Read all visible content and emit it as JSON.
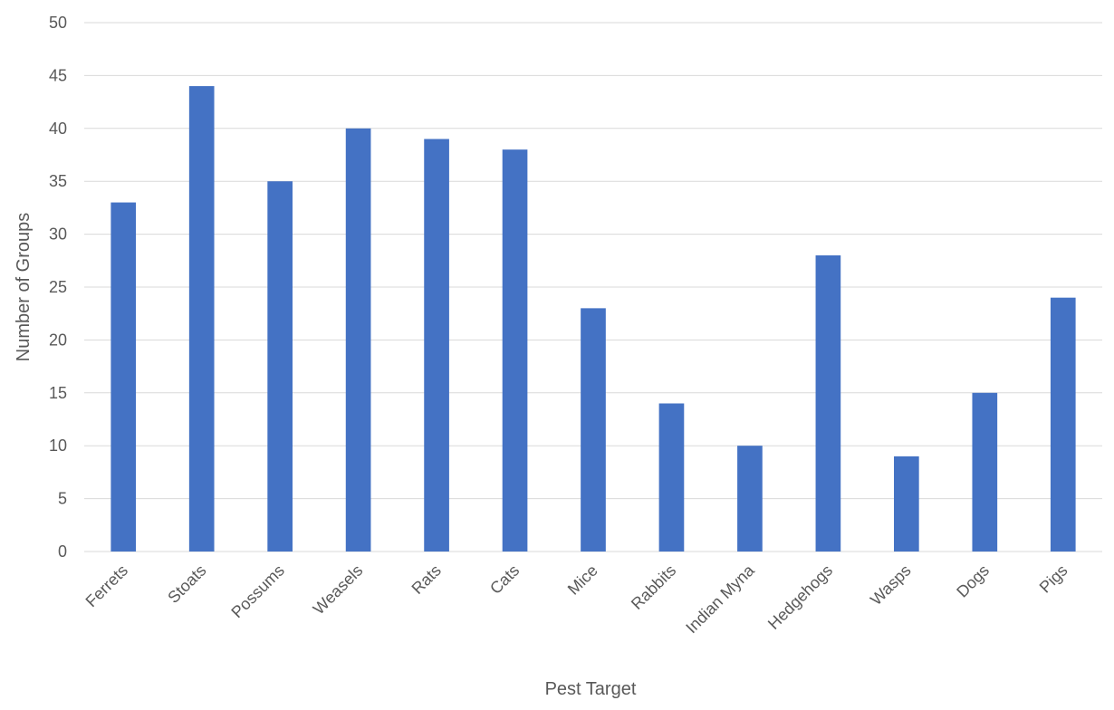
{
  "chart_data": {
    "type": "bar",
    "title": "",
    "xlabel": "Pest Target",
    "ylabel": "Number of Groups",
    "categories": [
      "Ferrets",
      "Stoats",
      "Possums",
      "Weasels",
      "Rats",
      "Cats",
      "Mice",
      "Rabbits",
      "Indian Myna",
      "Hedgehogs",
      "Wasps",
      "Dogs",
      "Pigs"
    ],
    "values": [
      33,
      44,
      35,
      40,
      39,
      38,
      23,
      14,
      10,
      28,
      9,
      15,
      24
    ],
    "ylim": [
      0,
      50
    ],
    "yticks": [
      0,
      5,
      10,
      15,
      20,
      25,
      30,
      35,
      40,
      45,
      50
    ],
    "grid": true,
    "legend": "none",
    "colors": {
      "bar": "#4472C4",
      "grid": "#D9D9D9",
      "text": "#595959"
    }
  }
}
